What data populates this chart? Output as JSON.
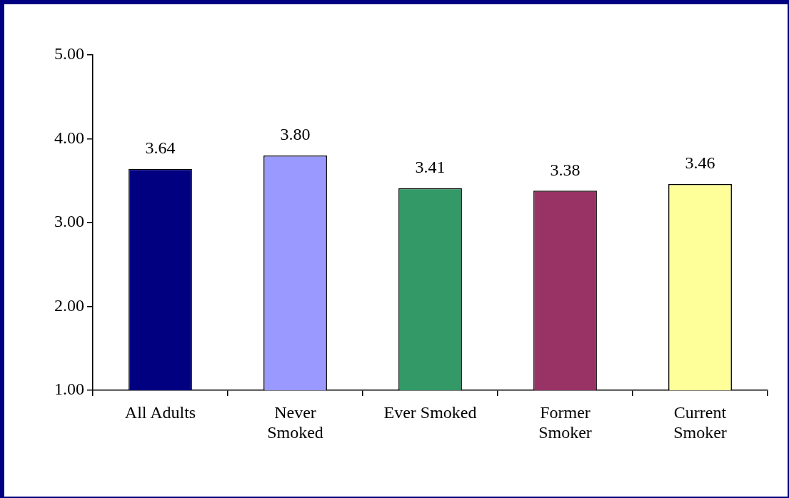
{
  "chart_data": {
    "type": "bar",
    "categories": [
      "All Adults",
      "Never\nSmoked",
      "Ever Smoked",
      "Former\nSmoker",
      "Current\nSmoker"
    ],
    "values": [
      3.64,
      3.8,
      3.41,
      3.38,
      3.46
    ],
    "colors": [
      "#000080",
      "#9999ff",
      "#339966",
      "#993366",
      "#ffff99"
    ],
    "value_labels": [
      "3.64",
      "3.80",
      "3.41",
      "3.38",
      "3.46"
    ],
    "ylim": [
      1,
      5
    ],
    "yticks": [
      {
        "value": 1,
        "label": "1.00"
      },
      {
        "value": 2,
        "label": "2.00"
      },
      {
        "value": 3,
        "label": "3.00"
      },
      {
        "value": 4,
        "label": "4.00"
      },
      {
        "value": 5,
        "label": "5.00"
      }
    ],
    "legend": false
  }
}
